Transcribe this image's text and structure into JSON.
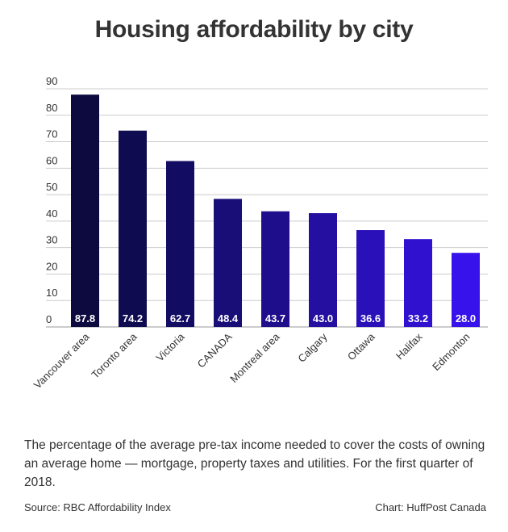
{
  "chart_data": {
    "type": "bar",
    "title": "Housing affordability by city",
    "categories": [
      "Vancouver area",
      "Toronto area",
      "Victoria",
      "CANADA",
      "Montreal area",
      "Calgary",
      "Ottawa",
      "Halifax",
      "Edmonton"
    ],
    "values": [
      87.8,
      74.2,
      62.7,
      48.4,
      43.7,
      43.0,
      36.6,
      33.2,
      28.0
    ],
    "value_labels": [
      "87.8",
      "74.2",
      "62.7",
      "48.4",
      "43.7",
      "43.0",
      "36.6",
      "33.2",
      "28.0"
    ],
    "bar_colors": [
      "#0c0a3e",
      "#0f0b51",
      "#130c63",
      "#190d78",
      "#1f0e8c",
      "#240fa0",
      "#2a10b8",
      "#2f11cf",
      "#3712ea"
    ],
    "yticks": [
      0,
      10,
      20,
      30,
      40,
      50,
      60,
      70,
      80,
      90
    ],
    "ylim": [
      0,
      90
    ],
    "xlabel": "",
    "ylabel": "",
    "grid": true
  },
  "caption": "The percentage of the average pre-tax income needed to cover the costs of owning an average home — mortgage, property taxes and utilities. For the first quarter of 2018.",
  "source": "Source: RBC Affordability Index",
  "credit": "Chart: HuffPost Canada"
}
